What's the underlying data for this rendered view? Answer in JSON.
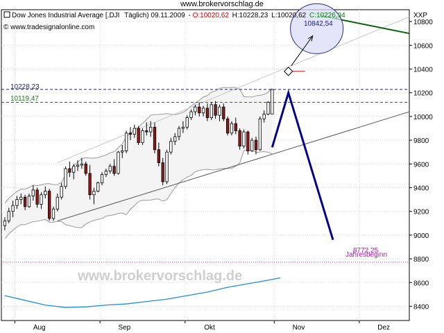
{
  "page_title": "www.brokervorschlag.de",
  "header": {
    "instrument": "Dow Jones Industrial Average [.DJI",
    "period_date": "Täglich) 09.11.2009",
    "open": "O:10020,62",
    "high": "H:10228,23",
    "low": "L:10020,62",
    "close": "C:10226,94",
    "source": "www.tradesignalonline.com",
    "axis_symbol": "XXP"
  },
  "watermark": "www.brokervorschlag.de",
  "annotations": {
    "level_high": "10228,23",
    "level_close_prev": "10119,47",
    "target_label": "10842,54",
    "year_start_label": "Jahresbeginn",
    "year_start_value": "8772,25"
  },
  "colors": {
    "up_candle": "#ffffff",
    "down_candle": "#8b1a1a",
    "forecast": "#00008b",
    "resistance_line": "#006400",
    "year_start": "#ff00ff",
    "moving_average": "#1e8ee0",
    "open_text": "#cc0000",
    "close_text": "#008000",
    "level_high_color": "#1a1a8c",
    "level_prev_color": "#1a7a1a"
  },
  "chart_data": {
    "type": "candlestick",
    "title": "Dow Jones Industrial Average [.DJI Täglich) 09.11.2009",
    "xlabel": "",
    "ylabel": "",
    "ylim": [
      8280,
      10900
    ],
    "y_ticks": [
      8400,
      8600,
      8800,
      9000,
      9200,
      9400,
      9600,
      9800,
      10000,
      10200,
      10400,
      10600,
      10800
    ],
    "y_tick_labels": [
      "8400",
      "8600",
      "8800",
      "9000",
      "9200",
      "9400",
      "9600",
      "9800",
      "10000",
      "10200",
      "10400",
      "10600",
      "10800"
    ],
    "x_month_labels": [
      "Aug",
      "Sep",
      "Okt",
      "Nov",
      "Dez"
    ],
    "x_month_start_index": [
      3,
      24,
      45,
      67,
      88
    ],
    "x_total_sessions": 100,
    "grid": true,
    "candles": [
      {
        "o": 9080,
        "h": 9150,
        "l": 9040,
        "c": 9120
      },
      {
        "o": 9120,
        "h": 9230,
        "l": 9100,
        "c": 9200
      },
      {
        "o": 9200,
        "h": 9290,
        "l": 9150,
        "c": 9250
      },
      {
        "o": 9250,
        "h": 9330,
        "l": 9220,
        "c": 9300
      },
      {
        "o": 9300,
        "h": 9350,
        "l": 9260,
        "c": 9320
      },
      {
        "o": 9320,
        "h": 9340,
        "l": 9210,
        "c": 9240
      },
      {
        "o": 9240,
        "h": 9350,
        "l": 9230,
        "c": 9330
      },
      {
        "o": 9330,
        "h": 9420,
        "l": 9290,
        "c": 9380
      },
      {
        "o": 9380,
        "h": 9400,
        "l": 9230,
        "c": 9260
      },
      {
        "o": 9260,
        "h": 9360,
        "l": 9220,
        "c": 9340
      },
      {
        "o": 9340,
        "h": 9410,
        "l": 9310,
        "c": 9370
      },
      {
        "o": 9370,
        "h": 9390,
        "l": 9120,
        "c": 9140
      },
      {
        "o": 9140,
        "h": 9240,
        "l": 9120,
        "c": 9220
      },
      {
        "o": 9220,
        "h": 9350,
        "l": 9200,
        "c": 9320
      },
      {
        "o": 9320,
        "h": 9440,
        "l": 9300,
        "c": 9410
      },
      {
        "o": 9410,
        "h": 9580,
        "l": 9390,
        "c": 9560
      },
      {
        "o": 9560,
        "h": 9620,
        "l": 9490,
        "c": 9530
      },
      {
        "o": 9530,
        "h": 9600,
        "l": 9470,
        "c": 9580
      },
      {
        "o": 9580,
        "h": 9630,
        "l": 9540,
        "c": 9590
      },
      {
        "o": 9590,
        "h": 9650,
        "l": 9560,
        "c": 9600
      },
      {
        "o": 9600,
        "h": 9620,
        "l": 9500,
        "c": 9520
      },
      {
        "o": 9520,
        "h": 9590,
        "l": 9300,
        "c": 9340
      },
      {
        "o": 9340,
        "h": 9400,
        "l": 9260,
        "c": 9370
      },
      {
        "o": 9370,
        "h": 9450,
        "l": 9360,
        "c": 9440
      },
      {
        "o": 9440,
        "h": 9530,
        "l": 9420,
        "c": 9510
      },
      {
        "o": 9510,
        "h": 9560,
        "l": 9490,
        "c": 9540
      },
      {
        "o": 9540,
        "h": 9600,
        "l": 9520,
        "c": 9580
      },
      {
        "o": 9580,
        "h": 9640,
        "l": 9500,
        "c": 9520
      },
      {
        "o": 9520,
        "h": 9710,
        "l": 9510,
        "c": 9700
      },
      {
        "o": 9700,
        "h": 9760,
        "l": 9650,
        "c": 9710
      },
      {
        "o": 9710,
        "h": 9880,
        "l": 9690,
        "c": 9860
      },
      {
        "o": 9860,
        "h": 9910,
        "l": 9800,
        "c": 9850
      },
      {
        "o": 9850,
        "h": 9930,
        "l": 9820,
        "c": 9900
      },
      {
        "o": 9900,
        "h": 9920,
        "l": 9760,
        "c": 9780
      },
      {
        "o": 9780,
        "h": 9900,
        "l": 9760,
        "c": 9880
      },
      {
        "o": 9880,
        "h": 9950,
        "l": 9840,
        "c": 9870
      },
      {
        "o": 9870,
        "h": 9960,
        "l": 9830,
        "c": 9910
      },
      {
        "o": 9910,
        "h": 9950,
        "l": 9690,
        "c": 9720
      },
      {
        "o": 9720,
        "h": 9780,
        "l": 9580,
        "c": 9610
      },
      {
        "o": 9610,
        "h": 9650,
        "l": 9420,
        "c": 9450
      },
      {
        "o": 9450,
        "h": 9720,
        "l": 9430,
        "c": 9700
      },
      {
        "o": 9700,
        "h": 9820,
        "l": 9680,
        "c": 9790
      },
      {
        "o": 9790,
        "h": 9860,
        "l": 9760,
        "c": 9830
      },
      {
        "o": 9830,
        "h": 9920,
        "l": 9800,
        "c": 9900
      },
      {
        "o": 9900,
        "h": 9960,
        "l": 9860,
        "c": 9910
      },
      {
        "o": 9910,
        "h": 10010,
        "l": 9890,
        "c": 9990
      },
      {
        "o": 9990,
        "h": 10060,
        "l": 9970,
        "c": 10040
      },
      {
        "o": 10040,
        "h": 10100,
        "l": 10010,
        "c": 10080
      },
      {
        "o": 10080,
        "h": 10120,
        "l": 10000,
        "c": 10030
      },
      {
        "o": 10030,
        "h": 10090,
        "l": 10000,
        "c": 10070
      },
      {
        "o": 10070,
        "h": 10110,
        "l": 9960,
        "c": 9990
      },
      {
        "o": 9990,
        "h": 10120,
        "l": 9970,
        "c": 10100
      },
      {
        "o": 10100,
        "h": 10130,
        "l": 9980,
        "c": 10010
      },
      {
        "o": 10010,
        "h": 10100,
        "l": 9960,
        "c": 10080
      },
      {
        "o": 10080,
        "h": 10110,
        "l": 9960,
        "c": 9980
      },
      {
        "o": 9980,
        "h": 10000,
        "l": 9840,
        "c": 9860
      },
      {
        "o": 9860,
        "h": 9960,
        "l": 9840,
        "c": 9940
      },
      {
        "o": 9940,
        "h": 9990,
        "l": 9850,
        "c": 9880
      },
      {
        "o": 9880,
        "h": 9900,
        "l": 9720,
        "c": 9750
      },
      {
        "o": 9750,
        "h": 9890,
        "l": 9730,
        "c": 9870
      },
      {
        "o": 9870,
        "h": 9880,
        "l": 9680,
        "c": 9710
      },
      {
        "o": 9710,
        "h": 9820,
        "l": 9700,
        "c": 9800
      },
      {
        "o": 9800,
        "h": 9830,
        "l": 9680,
        "c": 9720
      },
      {
        "o": 9720,
        "h": 10000,
        "l": 9710,
        "c": 9980
      },
      {
        "o": 9980,
        "h": 10050,
        "l": 9950,
        "c": 10020
      },
      {
        "o": 10020,
        "h": 10130,
        "l": 10010,
        "c": 10120
      },
      {
        "o": 10020,
        "h": 10228,
        "l": 10020,
        "c": 10227
      }
    ],
    "lines": {
      "resistance": {
        "x0": 78,
        "y0": 10850,
        "x1": 101,
        "y1": 10700
      },
      "support_channel": {
        "x0": 13,
        "y0": 9120,
        "x1": 101,
        "y1": 10040
      },
      "upper_channel": {
        "x0": 13,
        "y0": 9610,
        "x1": 101,
        "y1": 10840
      },
      "level_high": 10228.23,
      "level_prev": 10119.47,
      "year_start": 8772.25
    },
    "forecast_path": [
      {
        "x": 66,
        "y": 9740
      },
      {
        "x": 70,
        "y": 10200
      },
      {
        "x": 81,
        "y": 8960
      }
    ],
    "target_marker": {
      "x": 70,
      "y": 10380,
      "target_x": 76,
      "target_y": 10680,
      "circle_x": 77,
      "circle_y": 10740
    },
    "moving_average": [
      {
        "x": 0,
        "y": 8490
      },
      {
        "x": 5,
        "y": 8450
      },
      {
        "x": 10,
        "y": 8410
      },
      {
        "x": 15,
        "y": 8390
      },
      {
        "x": 20,
        "y": 8395
      },
      {
        "x": 25,
        "y": 8410
      },
      {
        "x": 30,
        "y": 8420
      },
      {
        "x": 35,
        "y": 8440
      },
      {
        "x": 40,
        "y": 8460
      },
      {
        "x": 45,
        "y": 8490
      },
      {
        "x": 50,
        "y": 8520
      },
      {
        "x": 55,
        "y": 8560
      },
      {
        "x": 60,
        "y": 8590
      },
      {
        "x": 65,
        "y": 8620
      },
      {
        "x": 68,
        "y": 8640
      }
    ]
  }
}
